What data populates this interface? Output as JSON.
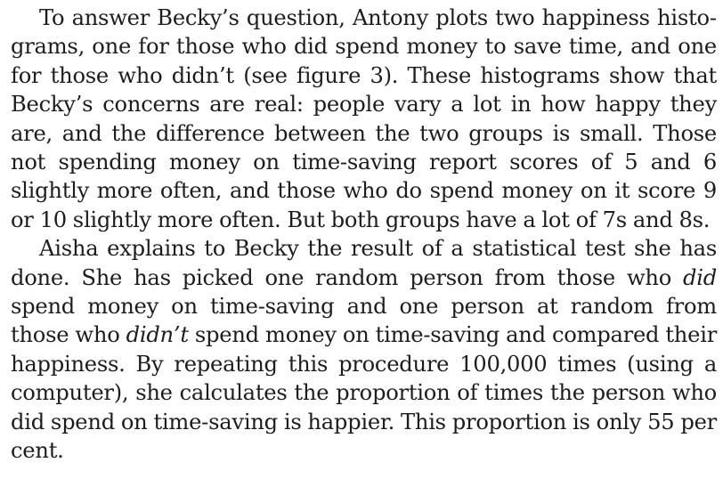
{
  "paragraphs": [
    {
      "segments": [
        {
          "text": "To answer Becky’s question, Antony plots two happiness histo­grams, one for those who did spend money to save time, and one for those who didn’t (see figure 3). These histograms show that Becky’s concerns are real: people vary a lot in how happy they are, and the difference between the two groups is small. Those not spending money on time-saving report scores of 5 and 6 slightly more often, and those who do spend money on it score 9 or 10 slightly more often. But both groups have a lot of 7s and 8s.",
          "italic": false
        }
      ]
    },
    {
      "segments": [
        {
          "text": "Aisha explains to Becky the result of a statistical test she has done. She has picked one random person from those who ",
          "italic": false
        },
        {
          "text": "did",
          "italic": true
        },
        {
          "text": " spend money on time-saving and one person at random from those who ",
          "italic": false
        },
        {
          "text": "didn’t",
          "italic": true
        },
        {
          "text": " spend money on time-saving and compared their happiness. By repeating this procedure 100,000 times (using a computer), she calculates the proportion of times the person who did spend on time-saving is happier. This proportion is only 55 per cent.",
          "italic": false
        }
      ]
    }
  ]
}
